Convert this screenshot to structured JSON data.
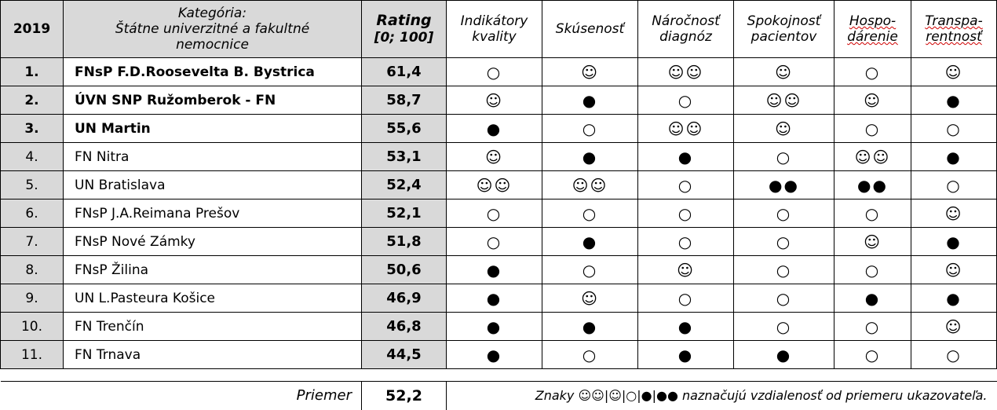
{
  "header": {
    "year": "2019",
    "category_line1": "Kategória:",
    "category_line2": "Štátne univerzitné a fakultné",
    "category_line3": "nemocnice",
    "rating_title": "Rating",
    "rating_range": "[0; 100]",
    "columns": [
      {
        "line1": "Indikátory",
        "line2": "kvality"
      },
      {
        "line1": "Skúsenosť",
        "line2": ""
      },
      {
        "line1": "Náročnosť",
        "line2": "diagnóz"
      },
      {
        "line1": "Spokojnosť",
        "line2": "pacientov"
      },
      {
        "line1": "Hospo-",
        "line2": "dárenie"
      },
      {
        "line1": "Transpa-",
        "line2": "rentnosť"
      }
    ]
  },
  "rows": [
    {
      "rank": "1.",
      "name": "FNsP F.D.Roosevelta B. Bystrica",
      "bold": true,
      "rating": "61,4",
      "symbols": [
        "○",
        "☺",
        "☺☺",
        "☺",
        "○",
        "☺"
      ]
    },
    {
      "rank": "2.",
      "name": "ÚVN SNP Ružomberok - FN",
      "bold": true,
      "rating": "58,7",
      "symbols": [
        "☺",
        "●",
        "○",
        "☺☺",
        "☺",
        "●"
      ]
    },
    {
      "rank": "3.",
      "name": "UN Martin",
      "bold": true,
      "rating": "55,6",
      "symbols": [
        "●",
        "○",
        "☺☺",
        "☺",
        "○",
        "○"
      ]
    },
    {
      "rank": "4.",
      "name": "FN Nitra",
      "bold": false,
      "rating": "53,1",
      "symbols": [
        "☺",
        "●",
        "●",
        "○",
        "☺☺",
        "●"
      ]
    },
    {
      "rank": "5.",
      "name": "UN Bratislava",
      "bold": false,
      "rating": "52,4",
      "symbols": [
        "☺☺",
        "☺☺",
        "○",
        "●●",
        "●●",
        "○"
      ]
    },
    {
      "rank": "6.",
      "name": "FNsP J.A.Reimana Prešov",
      "bold": false,
      "rating": "52,1",
      "symbols": [
        "○",
        "○",
        "○",
        "○",
        "○",
        "☺"
      ]
    },
    {
      "rank": "7.",
      "name": "FNsP Nové Zámky",
      "bold": false,
      "rating": "51,8",
      "symbols": [
        "○",
        "●",
        "○",
        "○",
        "☺",
        "●"
      ]
    },
    {
      "rank": "8.",
      "name": "FNsP Žilina",
      "bold": false,
      "rating": "50,6",
      "symbols": [
        "●",
        "○",
        "☺",
        "○",
        "○",
        "☺"
      ]
    },
    {
      "rank": "9.",
      "name": "UN L.Pasteura Košice",
      "bold": false,
      "rating": "46,9",
      "symbols": [
        "●",
        "☺",
        "○",
        "○",
        "●",
        "●"
      ]
    },
    {
      "rank": "10.",
      "name": "FN Trenčín",
      "bold": false,
      "rating": "46,8",
      "symbols": [
        "●",
        "●",
        "●",
        "○",
        "○",
        "☺"
      ]
    },
    {
      "rank": "11.",
      "name": "FN Trnava",
      "bold": false,
      "rating": "44,5",
      "symbols": [
        "●",
        "○",
        "●",
        "●",
        "○",
        "○"
      ]
    }
  ],
  "footer": {
    "average_label": "Priemer",
    "average_value": "52,2",
    "note": "Znaky ☺☺|☺|○|●|●● naznačujú vzdialenosť od priemeru ukazovateľa."
  }
}
